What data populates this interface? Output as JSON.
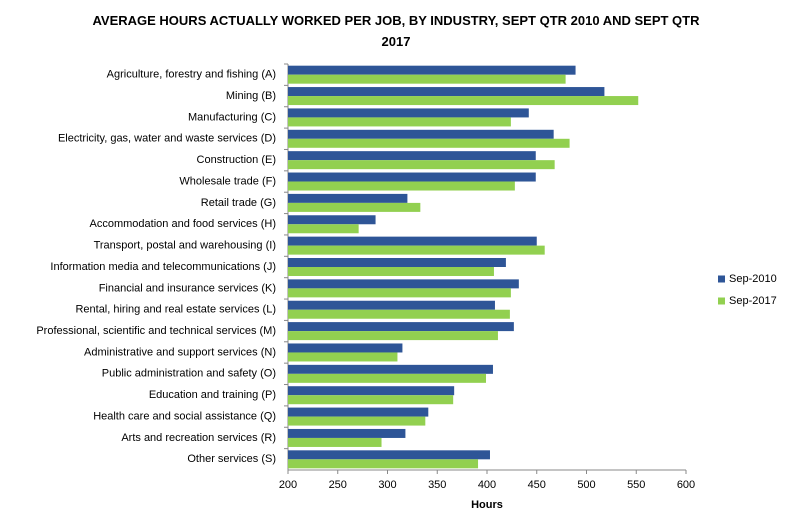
{
  "chart_data": {
    "type": "bar",
    "orientation": "horizontal",
    "title": "AVERAGE HOURS ACTUALLY WORKED PER JOB, BY INDUSTRY, SEPT QTR 2010 AND SEPT QTR 2017",
    "x_label": "Hours",
    "categories": [
      "Agriculture, forestry and fishing (A)",
      "Mining (B)",
      "Manufacturing (C)",
      "Electricity, gas, water and waste services (D)",
      "Construction (E)",
      "Wholesale trade (F)",
      "Retail trade (G)",
      "Accommodation and food services (H)",
      "Transport, postal and warehousing (I)",
      "Information media and telecommunications (J)",
      "Financial and insurance services (K)",
      "Rental, hiring and real estate services (L)",
      "Professional, scientific and technical services (M)",
      "Administrative and support services (N)",
      "Public administration and safety (O)",
      "Education and training (P)",
      "Health care and social assistance (Q)",
      "Arts and recreation services (R)",
      "Other services (S)"
    ],
    "series": [
      {
        "name": "Sep-2010",
        "color": "#2e5597",
        "values": [
          489,
          518,
          442,
          467,
          449,
          449,
          320,
          288,
          450,
          419,
          432,
          408,
          427,
          315,
          406,
          367,
          341,
          318,
          403
        ]
      },
      {
        "name": "Sep-2017",
        "color": "#92d050",
        "values": [
          479,
          552,
          424,
          483,
          468,
          428,
          333,
          271,
          458,
          407,
          424,
          423,
          411,
          310,
          399,
          366,
          338,
          294,
          391
        ]
      }
    ],
    "xlim": [
      200,
      600
    ],
    "xticks": [
      200,
      250,
      300,
      350,
      400,
      450,
      500,
      550,
      600
    ],
    "legend": "right",
    "grid": false
  }
}
